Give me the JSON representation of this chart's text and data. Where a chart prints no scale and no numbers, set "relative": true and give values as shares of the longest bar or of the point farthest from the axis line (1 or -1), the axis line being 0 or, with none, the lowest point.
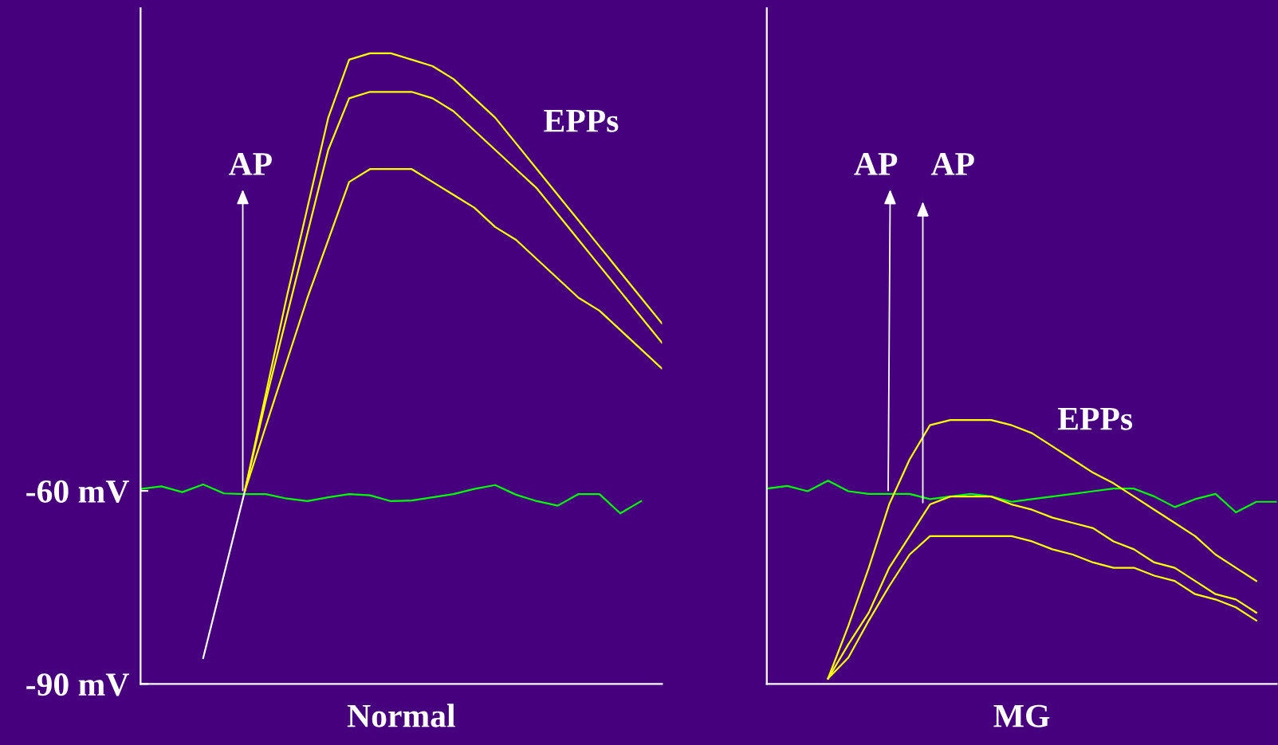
{
  "chart_data": [
    {
      "type": "line",
      "xlabel": "Normal",
      "categories": [
        null,
        null,
        null,
        null,
        null,
        null,
        null,
        null,
        null,
        null,
        null,
        null,
        null,
        null,
        null,
        null,
        null,
        null,
        null,
        null,
        null,
        null,
        null,
        null,
        null,
        null
      ],
      "ylim": [
        -90,
        15
      ],
      "yticks": [
        {
          "value": -60,
          "label": "-60 mV"
        },
        {
          "value": -90,
          "label": "-90 mV"
        }
      ],
      "tick_labels": "y",
      "grid": false,
      "marker": "none",
      "line_style": "solid",
      "annotations": [
        "AP",
        "EPPs"
      ],
      "series": [
        {
          "color": "#00ff00",
          "values": [
            -59.7,
            -59.3,
            -60.2,
            -59.0,
            -60.4,
            -60.5,
            -60.5,
            -61.2,
            -61.6,
            -61.0,
            -60.5,
            -60.7,
            -61.6,
            -61.5,
            -61.0,
            -60.5,
            -59.7,
            -59.1,
            -60.6,
            -61.6,
            -62.3,
            -60.5,
            -60.5,
            -63.5,
            -61.6,
            null
          ]
        },
        {
          "color": "#ffffff",
          "values": [
            null,
            null,
            null,
            -86,
            -73,
            -60,
            null,
            null,
            null,
            null,
            null,
            null,
            null,
            null,
            null,
            null,
            null,
            null,
            null,
            null,
            null,
            null,
            null,
            null,
            null,
            null
          ]
        },
        {
          "color": "#ffff00",
          "values": [
            null,
            null,
            null,
            null,
            null,
            -60,
            -45,
            -30,
            -16,
            -2,
            7,
            8,
            8,
            7,
            6,
            4,
            1,
            -2,
            -6,
            -10,
            -14,
            -18,
            -22,
            -26,
            -30,
            -34
          ]
        },
        {
          "color": "#ffff00",
          "values": [
            null,
            null,
            null,
            null,
            null,
            -60,
            -46,
            -33,
            -20,
            -7,
            1,
            2,
            2,
            2,
            1,
            -1,
            -4,
            -7,
            -10,
            -13,
            -17,
            -21,
            -25,
            -29,
            -33,
            -37
          ]
        },
        {
          "color": "#ffff00",
          "values": [
            null,
            null,
            null,
            null,
            null,
            -60,
            -50,
            -40,
            -30,
            -21,
            -12,
            -10,
            -10,
            -10,
            -12,
            -14,
            -16,
            -19,
            -21,
            -24,
            -27,
            -30,
            -32,
            -35,
            -38,
            -41
          ]
        }
      ]
    },
    {
      "type": "line",
      "xlabel": "MG",
      "categories": [
        null,
        null,
        null,
        null,
        null,
        null,
        null,
        null,
        null,
        null,
        null,
        null,
        null,
        null,
        null,
        null,
        null,
        null,
        null,
        null,
        null,
        null,
        null,
        null,
        null,
        null
      ],
      "relative": true,
      "grid": false,
      "marker": "none",
      "line_style": "solid",
      "annotations": [
        "AP",
        "AP",
        "EPPs"
      ],
      "series": [
        {
          "color": "#00ff00",
          "values": [
            0.74,
            0.75,
            0.73,
            0.77,
            0.73,
            0.72,
            0.72,
            0.72,
            0.7,
            0.71,
            0.72,
            0.71,
            0.69,
            0.7,
            0.71,
            0.72,
            0.73,
            0.74,
            0.74,
            0.71,
            0.67,
            0.7,
            0.72,
            0.65,
            0.69,
            0.69
          ]
        },
        {
          "color": "#ffff00",
          "values": [
            null,
            null,
            null,
            0.02,
            0.22,
            0.44,
            0.68,
            0.85,
            0.98,
            1,
            1,
            1,
            0.98,
            0.95,
            0.9,
            0.85,
            0.8,
            0.76,
            0.71,
            0.66,
            0.61,
            0.56,
            0.49,
            0.44,
            0.39,
            null
          ]
        },
        {
          "color": "#ffff00",
          "values": [
            null,
            null,
            null,
            0.02,
            0.15,
            0.27,
            0.44,
            0.56,
            0.68,
            0.71,
            0.71,
            0.71,
            0.68,
            0.66,
            0.63,
            0.61,
            0.59,
            0.54,
            0.51,
            0.46,
            0.44,
            0.39,
            0.34,
            0.32,
            0.27,
            null
          ]
        },
        {
          "color": "#ffff00",
          "values": [
            null,
            null,
            null,
            0.02,
            0.1,
            0.24,
            0.37,
            0.49,
            0.56,
            0.56,
            0.56,
            0.56,
            0.56,
            0.54,
            0.51,
            0.49,
            0.46,
            0.44,
            0.44,
            0.41,
            0.39,
            0.34,
            0.32,
            0.29,
            0.24,
            null
          ]
        }
      ]
    }
  ]
}
